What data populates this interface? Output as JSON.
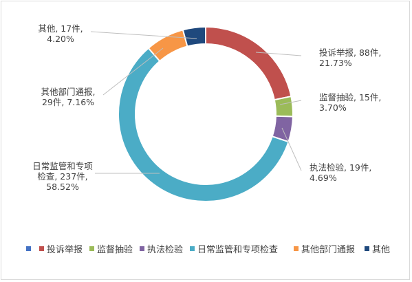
{
  "chart_data": {
    "type": "donut",
    "title": "",
    "categories": [
      "",
      "投诉举报",
      "监督抽验",
      "执法检验",
      "日常监管和专项检查",
      "其他部门通报",
      "其他"
    ],
    "values": [
      0,
      88,
      15,
      19,
      237,
      29,
      17
    ],
    "units": "件",
    "percent_labels": [
      "",
      "21.73%",
      "3.70%",
      "4.69%",
      "58.52%",
      "7.16%",
      "4.20%"
    ],
    "data_labels": [
      [],
      [
        "投诉举报, 88件,",
        "21.73%"
      ],
      [
        "监督抽验, 15件,",
        "3.70%"
      ],
      [
        "执法检验, 19件,",
        "4.69%"
      ],
      [
        "日常监管和专项",
        "检查, 237件,",
        "58.52%"
      ],
      [
        "其他部门通报,",
        "29件, 7.16%"
      ],
      [
        "其他, 17件,",
        "4.20%"
      ]
    ],
    "colors": [
      "#4472c4",
      "#c0504d",
      "#9bbb59",
      "#8064a2",
      "#4bacc6",
      "#f79646",
      "#1f497d"
    ],
    "legend_position": "bottom"
  }
}
